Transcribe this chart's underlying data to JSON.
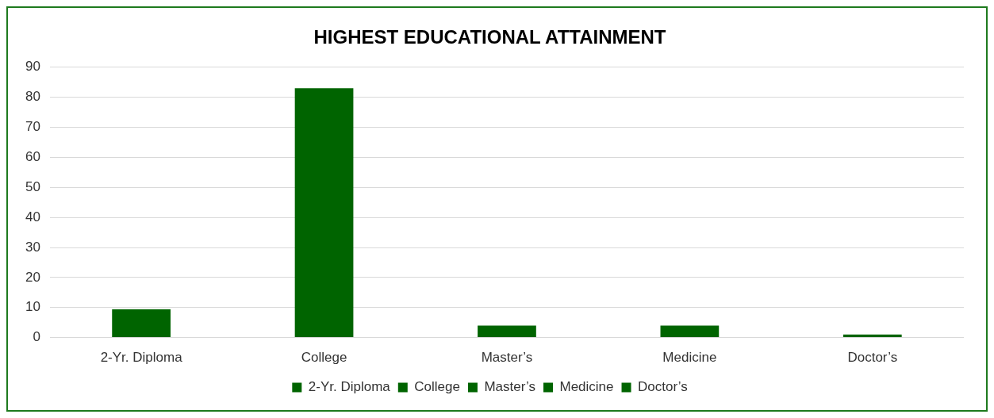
{
  "chart_data": {
    "type": "bar",
    "title": "HIGHEST EDUCATIONAL ATTAINMENT",
    "categories": [
      "2-Yr. Diploma",
      "College",
      "Master’s",
      "Medicine",
      "Doctor’s"
    ],
    "series": [
      {
        "name": "2-Yr. Diploma",
        "color": "#006400",
        "values": [
          9.4,
          null,
          null,
          null,
          null
        ]
      },
      {
        "name": "College",
        "color": "#006400",
        "values": [
          null,
          83,
          null,
          null,
          null
        ]
      },
      {
        "name": "Master’s",
        "color": "#006400",
        "values": [
          null,
          null,
          4,
          null,
          null
        ]
      },
      {
        "name": "Medicine",
        "color": "#006400",
        "values": [
          null,
          null,
          null,
          4,
          null
        ]
      },
      {
        "name": "Doctor’s",
        "color": "#006400",
        "values": [
          null,
          null,
          null,
          null,
          1
        ]
      }
    ],
    "ylim": [
      0,
      90
    ],
    "yticks": [
      0,
      10,
      20,
      30,
      40,
      50,
      60,
      70,
      80,
      90
    ],
    "grid": "y",
    "legend": "bottom"
  }
}
